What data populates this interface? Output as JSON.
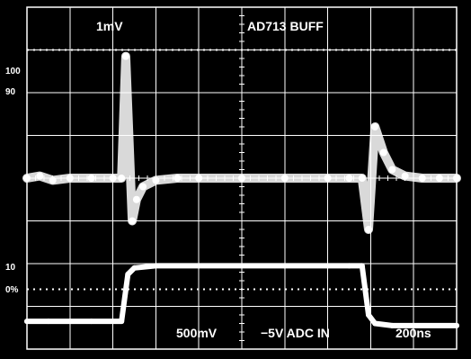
{
  "chart_data": {
    "type": "line",
    "title": "",
    "annotations": {
      "top_left": "1mV",
      "top_right": "AD713 BUFF",
      "bottom_volts": "500mV",
      "bottom_signal": "−5V ADC IN",
      "bottom_time": "200ns"
    },
    "reference_marks": [
      "100",
      "90",
      "10",
      "0%"
    ],
    "grid": true,
    "x_divisions": 10,
    "y_divisions": 8,
    "xlim": [
      0,
      10
    ],
    "ylim": [
      -4,
      4
    ],
    "series": [
      {
        "x": [
          0.0,
          0.3,
          0.6,
          1.0,
          1.5,
          2.0,
          2.2,
          2.3,
          2.45,
          2.55,
          2.7,
          3.0,
          3.5,
          4.0,
          5.0,
          6.0,
          7.0,
          7.5,
          7.8,
          7.95,
          8.1,
          8.3,
          8.5,
          8.8,
          9.2,
          9.6,
          10.0
        ],
        "y": [
          0.0,
          0.05,
          -0.05,
          0.0,
          0.0,
          0.0,
          0.0,
          2.85,
          -1.0,
          -0.5,
          -0.2,
          -0.05,
          0.0,
          0.0,
          0.0,
          0.0,
          0.0,
          0.0,
          0.0,
          -1.2,
          1.2,
          0.6,
          0.2,
          0.05,
          0.0,
          0.0,
          0.0
        ]
      },
      {
        "x": [
          0.0,
          0.5,
          1.0,
          1.5,
          2.0,
          2.2,
          2.35,
          2.5,
          3.0,
          4.0,
          5.0,
          6.0,
          7.0,
          7.5,
          7.8,
          7.95,
          8.1,
          8.5,
          9.0,
          10.0
        ],
        "y": [
          -3.35,
          -3.35,
          -3.35,
          -3.35,
          -3.35,
          -3.35,
          -2.25,
          -2.1,
          -2.05,
          -2.05,
          -2.05,
          -2.05,
          -2.05,
          -2.05,
          -2.05,
          -3.2,
          -3.4,
          -3.45,
          -3.45,
          -3.45
        ]
      }
    ]
  }
}
